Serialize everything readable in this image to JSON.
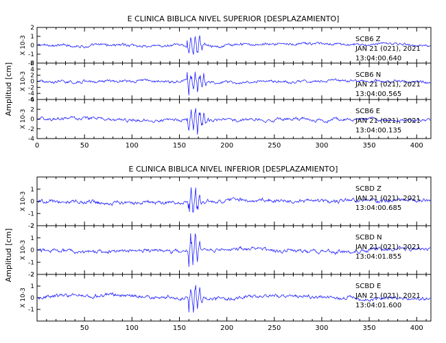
{
  "figure": {
    "top_title": "E CLINICA BIBLICA NIVEL SUPERIOR [DESPLAZAMIENTO]",
    "bottom_title": "E CLINICA BIBLICA NIVEL INFERIOR [DESPLAZAMIENTO]",
    "ylabel": "Amplitud [cm]",
    "scale_label": "X 10-3",
    "x_ticks": [
      "0",
      "50",
      "100",
      "150",
      "200",
      "250",
      "300",
      "350",
      "400"
    ],
    "bottom_x_ticks": [
      "50",
      "100",
      "150",
      "200",
      "250",
      "300",
      "350",
      "400"
    ]
  },
  "chart_data": [
    {
      "type": "line",
      "title": "E CLINICA BIBLICA NIVEL SUPERIOR [DESPLAZAMIENTO]",
      "ylabel": "Amplitud [cm]",
      "xlim": [
        0,
        415
      ],
      "grid": false,
      "series_color": "#1f1fff",
      "traces": [
        {
          "station": "SCB6",
          "component": "Z",
          "date": "JAN 21 (021), 2021",
          "time": "13:04:00.640",
          "ylim": [
            -2,
            2
          ],
          "yticks": [
            "-2",
            "-1",
            "0",
            "1",
            "2"
          ],
          "event_x": [
            158,
            168
          ]
        },
        {
          "station": "SCB6",
          "component": "N",
          "date": "JAN 21 (021), 2021",
          "time": "13:04:00.565",
          "ylim": [
            -6,
            6
          ],
          "yticks": [
            "-6",
            "-4",
            "-2",
            "0",
            "2",
            "4",
            "6"
          ],
          "event_x": [
            158,
            172
          ]
        },
        {
          "station": "SCB6",
          "component": "E",
          "date": "JAN 21 (021), 2021",
          "time": "13:04:00.135",
          "ylim": [
            -4,
            4
          ],
          "yticks": [
            "-4",
            "-2",
            "0",
            "2",
            "4"
          ],
          "event_x": [
            158,
            172
          ]
        }
      ]
    },
    {
      "type": "line",
      "title": "E CLINICA BIBLICA NIVEL INFERIOR [DESPLAZAMIENTO]",
      "ylabel": "Amplitud [cm]",
      "xlim": [
        0,
        415
      ],
      "grid": false,
      "series_color": "#1f1fff",
      "traces": [
        {
          "station": "SCBD",
          "component": "Z",
          "date": "JAN 21 (021), 2021",
          "time": "13:04:00.685",
          "ylim": [
            -2,
            2
          ],
          "yticks": [
            "-2",
            "-1",
            "0",
            "1"
          ],
          "event_x": [
            159,
            166
          ]
        },
        {
          "station": "SCBD",
          "component": "N",
          "date": "JAN 21 (021), 2021",
          "time": "13:04:01.855",
          "ylim": [
            -2,
            2
          ],
          "yticks": [
            "-2",
            "-1",
            "0",
            "1",
            "2"
          ],
          "event_x": [
            159,
            166
          ]
        },
        {
          "station": "SCBD",
          "component": "E",
          "date": "JAN 21 (021), 2021",
          "time": "13:04:01.600",
          "ylim": [
            -2,
            2
          ],
          "yticks": [
            "-1",
            "0",
            "1",
            "2"
          ],
          "event_x": [
            159,
            168
          ]
        }
      ]
    }
  ]
}
